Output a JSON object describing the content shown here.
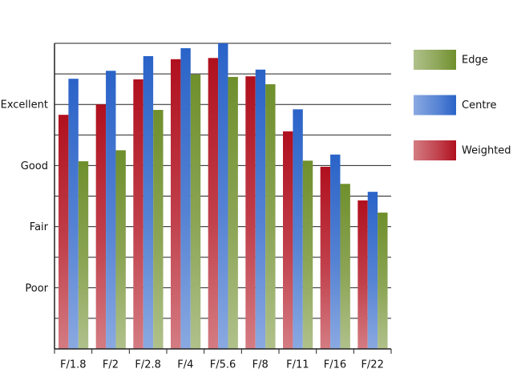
{
  "chart_data": {
    "type": "bar",
    "categories": [
      "F/1.8",
      "F/2",
      "F/2.8",
      "F/4",
      "F/5.6",
      "F/8",
      "F/11",
      "F/16",
      "F/22"
    ],
    "series": [
      {
        "name": "Weighted",
        "color": "#b0101e",
        "values": [
          3.83,
          4.0,
          4.41,
          4.74,
          4.76,
          4.46,
          3.56,
          2.98,
          2.43
        ]
      },
      {
        "name": "Centre",
        "color": "#2a63c8",
        "values": [
          4.42,
          4.55,
          4.79,
          4.92,
          5.0,
          4.57,
          3.92,
          3.18,
          2.57
        ]
      },
      {
        "name": "Edge",
        "color": "#6f8f2c",
        "values": [
          3.07,
          3.25,
          3.91,
          4.49,
          4.45,
          4.33,
          3.08,
          2.7,
          2.23
        ]
      }
    ],
    "ylim": [
      0,
      5
    ],
    "yticks": [
      {
        "value": 1,
        "label": "Poor"
      },
      {
        "value": 2,
        "label": "Fair"
      },
      {
        "value": 3,
        "label": "Good"
      },
      {
        "value": 4,
        "label": "Excellent"
      }
    ],
    "minor_yticks": [
      0.5,
      1.5,
      2.5,
      3.5,
      4.5,
      5
    ],
    "grid": true
  }
}
